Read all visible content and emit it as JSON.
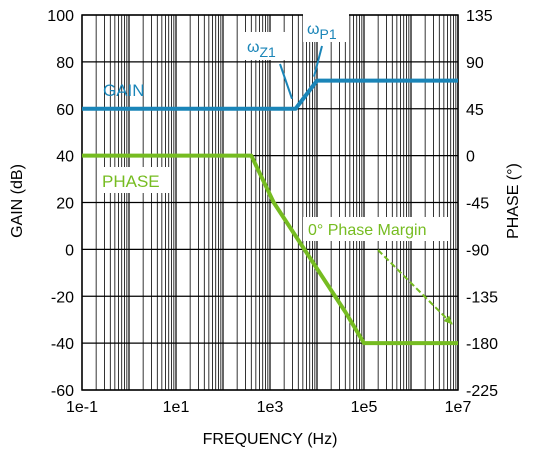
{
  "chart_data": {
    "type": "line",
    "xlabel": "FREQUENCY (Hz)",
    "ylabel_left": "GAIN (dB)",
    "ylabel_right": "PHASE (°)",
    "x_scale": "log",
    "xlim": [
      0.1,
      10000000
    ],
    "ylim_left": [
      -60,
      100
    ],
    "ylim_right": [
      -225,
      135
    ],
    "grid": true,
    "x_ticks": [
      "1e-1",
      "1e1",
      "1e3",
      "1e5",
      "1e7"
    ],
    "y_left_ticks": [
      "100",
      "80",
      "60",
      "40",
      "20",
      "0",
      "-20",
      "-40",
      "-60"
    ],
    "y_right_ticks": [
      "135",
      "90",
      "45",
      "0",
      "-45",
      "-90",
      "-135",
      "-180",
      "-225"
    ],
    "colors": {
      "gain": "#1a85b8",
      "phase": "#76bc21",
      "grid": "#000000"
    },
    "series": [
      {
        "name": "GAIN",
        "axis": "left",
        "x": [
          0.1,
          3500,
          10000,
          10000000
        ],
        "y": [
          60,
          60,
          72,
          72
        ]
      },
      {
        "name": "PHASE",
        "axis": "right",
        "x": [
          0.1,
          400,
          1200,
          40000,
          100000,
          10000000
        ],
        "y": [
          0,
          0,
          -45,
          -150,
          -180,
          -180
        ]
      }
    ],
    "annotations": [
      {
        "id": "wz1",
        "symbol": "ω",
        "sub": "Z1",
        "color": "#1a85b8",
        "point_x": 3500,
        "point_y": 60,
        "axis": "left"
      },
      {
        "id": "wp1",
        "symbol": "ω",
        "sub": "P1",
        "color": "#1a85b8",
        "point_x": 10000,
        "point_y": 72,
        "axis": "left"
      },
      {
        "id": "pm",
        "text": "0° Phase Margin",
        "color": "#76bc21",
        "point_x": 10000000,
        "point_y": -180,
        "axis": "right"
      }
    ]
  }
}
